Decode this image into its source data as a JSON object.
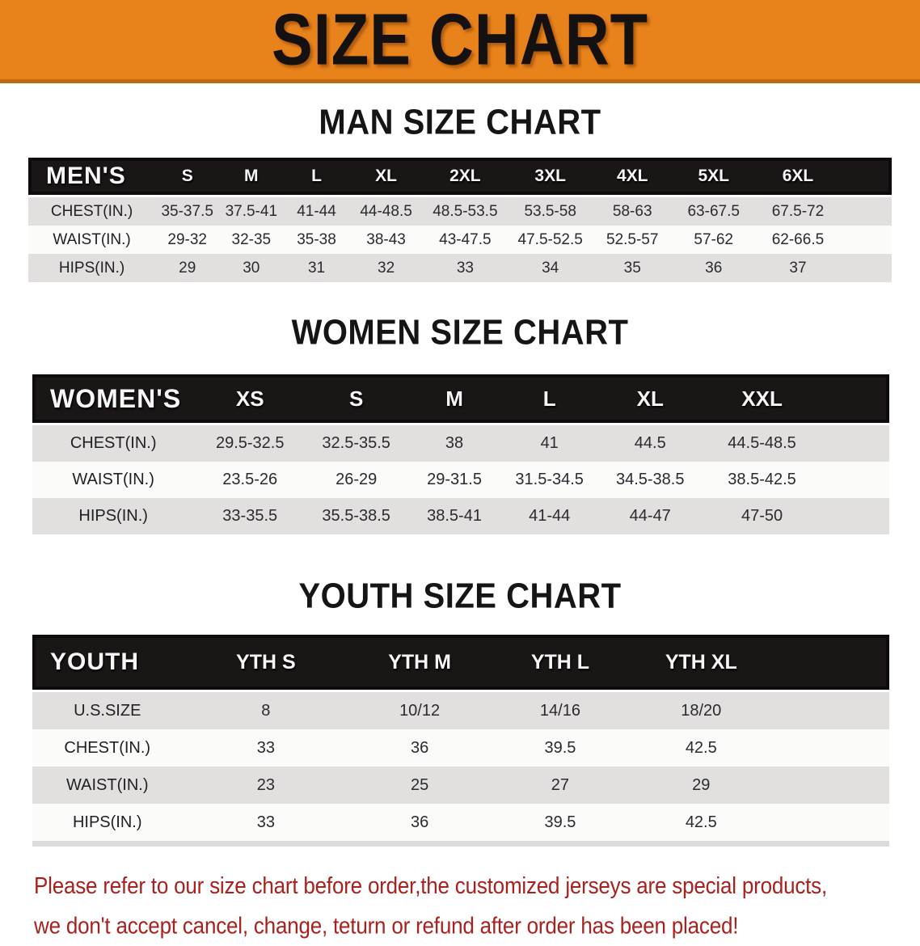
{
  "banner": {
    "title": "SIZE CHART"
  },
  "colors": {
    "banner_bg": "#E8821B",
    "banner_edge": "#C2690F",
    "header_bar_bg": "#1B1616",
    "row_shaded": "#E2E0DF",
    "row_plain": "#FBFBFA",
    "disclaimer_red": "#A8211E"
  },
  "sections": [
    {
      "heading": "MAN SIZE CHART",
      "group_label": "MEN'S",
      "sizes": [
        "S",
        "M",
        "L",
        "XL",
        "2XL",
        "3XL",
        "4XL",
        "5XL",
        "6XL"
      ],
      "rows": [
        {
          "label": "CHEST(IN.)",
          "values": [
            "35-37.5",
            "37.5-41",
            "41-44",
            "44-48.5",
            "48.5-53.5",
            "53.5-58",
            "58-63",
            "63-67.5",
            "67.5-72"
          ]
        },
        {
          "label": "WAIST(IN.)",
          "values": [
            "29-32",
            "32-35",
            "35-38",
            "38-43",
            "43-47.5",
            "47.5-52.5",
            "52.5-57",
            "57-62",
            "62-66.5"
          ]
        },
        {
          "label": "HIPS(IN.)",
          "values": [
            "29",
            "30",
            "31",
            "32",
            "33",
            "34",
            "35",
            "36",
            "37"
          ]
        }
      ]
    },
    {
      "heading": "WOMEN SIZE CHART",
      "group_label": "WOMEN'S",
      "sizes": [
        "XS",
        "S",
        "M",
        "L",
        "XL",
        "XXL"
      ],
      "rows": [
        {
          "label": "CHEST(IN.)",
          "values": [
            "29.5-32.5",
            "32.5-35.5",
            "38",
            "41",
            "44.5",
            "44.5-48.5"
          ]
        },
        {
          "label": "WAIST(IN.)",
          "values": [
            "23.5-26",
            "26-29",
            "29-31.5",
            "31.5-34.5",
            "34.5-38.5",
            "38.5-42.5"
          ]
        },
        {
          "label": "HIPS(IN.)",
          "values": [
            "33-35.5",
            "35.5-38.5",
            "38.5-41",
            "41-44",
            "44-47",
            "47-50"
          ]
        }
      ]
    },
    {
      "heading": "YOUTH SIZE CHART",
      "group_label": "YOUTH",
      "sizes": [
        "YTH S",
        "YTH M",
        "YTH L",
        "YTH XL"
      ],
      "rows": [
        {
          "label": "U.S.SIZE",
          "values": [
            "8",
            "10/12",
            "14/16",
            "18/20"
          ]
        },
        {
          "label": "CHEST(IN.)",
          "values": [
            "33",
            "36",
            "39.5",
            "42.5"
          ]
        },
        {
          "label": "WAIST(IN.)",
          "values": [
            "23",
            "25",
            "27",
            "29"
          ]
        },
        {
          "label": "HIPS(IN.)",
          "values": [
            "33",
            "36",
            "39.5",
            "42.5"
          ]
        }
      ]
    }
  ],
  "disclaimer": {
    "line1": "Please refer to our size chart before order,the customized jerseys are special products,",
    "line2": "we don't accept cancel, change, teturn or refund after order has been placed!"
  }
}
